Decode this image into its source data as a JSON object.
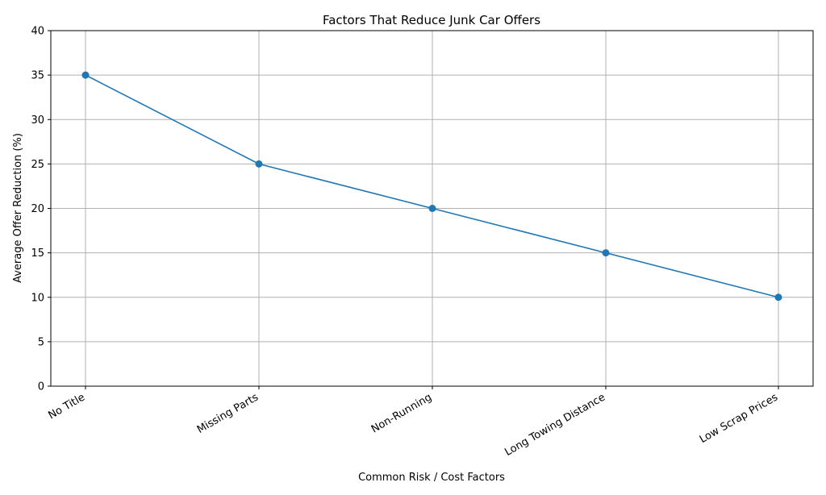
{
  "chart_data": {
    "type": "line",
    "title": "Factors That Reduce Junk Car Offers",
    "xlabel": "Common Risk / Cost Factors",
    "ylabel": "Average Offer Reduction (%)",
    "categories": [
      "No Title",
      "Missing Parts",
      "Non-Running",
      "Long Towing Distance",
      "Low Scrap Prices"
    ],
    "values": [
      35,
      25,
      20,
      15,
      10
    ],
    "ylim": [
      0,
      40
    ],
    "yticks": [
      0,
      5,
      10,
      15,
      20,
      25,
      30,
      35,
      40
    ],
    "grid": true,
    "legend": null,
    "marker": "circle",
    "color": "#1f77b4"
  }
}
